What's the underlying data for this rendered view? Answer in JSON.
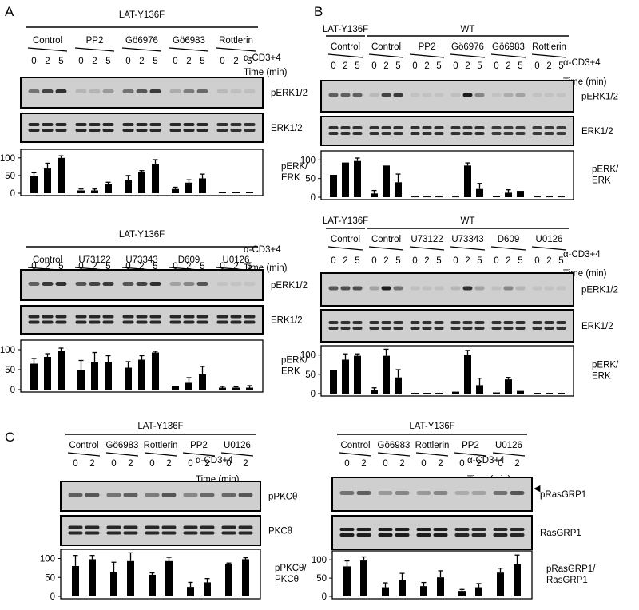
{
  "panel_letters": [
    "A",
    "B",
    "C"
  ],
  "panels": [
    {
      "id": "A_top",
      "group_labels": [
        {
          "text": "LAT-Y136F"
        }
      ],
      "treatments": [
        "Control",
        "PP2",
        "Gö6976",
        "Gö6983",
        "Rottlerin"
      ],
      "timepoints": [
        "0",
        "2",
        "5"
      ],
      "stim_label": "α-CD3+4",
      "time_label": "Time (min)",
      "blot_labels": [
        "pERK1/2",
        "ERK1/2"
      ],
      "band_intensity": {
        "phospho": [
          0.45,
          0.7,
          0.8,
          0.1,
          0.1,
          0.25,
          0.45,
          0.6,
          0.75,
          0.15,
          0.4,
          0.5,
          0.08,
          0.05,
          0.05
        ],
        "total": [
          0.85,
          0.85,
          0.85,
          0.85,
          0.85,
          0.85,
          0.85,
          0.85,
          0.85,
          0.85,
          0.85,
          0.85,
          0.8,
          0.8,
          0.8
        ]
      },
      "chart_ylabel": "pERK/ ERK",
      "chart_data": {
        "type": "bar",
        "ylim": [
          0,
          120
        ],
        "yticks": [
          "0",
          "50",
          "100"
        ],
        "values": [
          48,
          70,
          100,
          8,
          8,
          25,
          38,
          60,
          83,
          12,
          30,
          42,
          3,
          3,
          3
        ],
        "errors": [
          10,
          15,
          6,
          4,
          4,
          6,
          12,
          4,
          12,
          5,
          8,
          12,
          0,
          0,
          0
        ]
      }
    },
    {
      "id": "A_bottom",
      "group_labels": [
        {
          "text": "LAT-Y136F"
        }
      ],
      "treatments": [
        "Control",
        "U73122",
        "U73343",
        "D609",
        "U0126"
      ],
      "timepoints": [
        "0",
        "2",
        "5"
      ],
      "stim_label": "α-CD3+4",
      "time_label": "Time (min)",
      "blot_labels": [
        "pERK1/2",
        "ERK1/2"
      ],
      "band_intensity": {
        "phospho": [
          0.55,
          0.75,
          0.8,
          0.6,
          0.7,
          0.75,
          0.6,
          0.7,
          0.8,
          0.2,
          0.35,
          0.6,
          0.03,
          0.03,
          0.03
        ],
        "total": [
          0.85,
          0.85,
          0.85,
          0.85,
          0.85,
          0.85,
          0.85,
          0.85,
          0.85,
          0.85,
          0.85,
          0.85,
          0.85,
          0.85,
          0.85
        ]
      },
      "chart_ylabel": "pERK/ ERK",
      "chart_data": {
        "type": "bar",
        "ylim": [
          0,
          120
        ],
        "yticks": [
          "0",
          "50",
          "100"
        ],
        "values": [
          65,
          82,
          98,
          48,
          68,
          70,
          55,
          75,
          93,
          10,
          17,
          38,
          5,
          5,
          5
        ],
        "errors": [
          13,
          8,
          6,
          25,
          25,
          15,
          15,
          10,
          3,
          0,
          13,
          20,
          3,
          2,
          5
        ]
      }
    },
    {
      "id": "B_top",
      "group_labels": [
        {
          "text": "LAT-Y136F"
        },
        {
          "text": "WT"
        }
      ],
      "treatments": [
        "Control",
        "Control",
        "PP2",
        "Gö6976",
        "Gö6983",
        "Rottlerin"
      ],
      "timepoints": [
        "0",
        "2",
        "5"
      ],
      "stim_label": "α-CD3+4",
      "time_label": "Time (min)",
      "blot_labels": [
        "pERK1/2",
        "ERK1/2"
      ],
      "band_intensity": {
        "phospho": [
          0.55,
          0.55,
          0.55,
          0.08,
          0.7,
          0.75,
          0.03,
          0.03,
          0.03,
          0.05,
          0.9,
          0.35,
          0.03,
          0.15,
          0.2,
          0.03,
          0.03,
          0.03
        ],
        "total": [
          0.8,
          0.8,
          0.8,
          0.8,
          0.8,
          0.8,
          0.8,
          0.8,
          0.8,
          0.8,
          0.8,
          0.8,
          0.75,
          0.75,
          0.75,
          0.75,
          0.75,
          0.75
        ]
      },
      "chart_ylabel": "pERK/ ERK",
      "chart_data": {
        "type": "bar",
        "ylim": [
          0,
          120
        ],
        "yticks": [
          "0",
          "50",
          "100"
        ],
        "values": [
          60,
          93,
          97,
          10,
          85,
          40,
          2,
          2,
          2,
          2,
          85,
          22,
          3,
          12,
          17,
          2,
          2,
          2
        ],
        "errors": [
          0,
          0,
          8,
          8,
          0,
          22,
          0,
          0,
          0,
          0,
          7,
          15,
          0,
          8,
          0,
          0,
          0,
          0
        ]
      }
    },
    {
      "id": "B_bottom",
      "group_labels": [
        {
          "text": "LAT-Y136F"
        },
        {
          "text": "WT"
        }
      ],
      "treatments": [
        "Control",
        "Control",
        "U73122",
        "U73343",
        "D609",
        "U0126"
      ],
      "timepoints": [
        "0",
        "2",
        "5"
      ],
      "stim_label": "α-CD3+4",
      "time_label": "Time (min)",
      "blot_labels": [
        "pERK1/2",
        "ERK1/2"
      ],
      "band_intensity": {
        "phospho": [
          0.6,
          0.65,
          0.65,
          0.2,
          0.9,
          0.45,
          0.05,
          0.05,
          0.05,
          0.1,
          0.8,
          0.2,
          0.05,
          0.35,
          0.1,
          0.03,
          0.03,
          0.03
        ],
        "total": [
          0.8,
          0.8,
          0.8,
          0.8,
          0.8,
          0.8,
          0.8,
          0.8,
          0.8,
          0.8,
          0.8,
          0.8,
          0.8,
          0.8,
          0.8,
          0.8,
          0.8,
          0.8
        ]
      },
      "chart_ylabel": "pERK/ ERK",
      "chart_data": {
        "type": "bar",
        "ylim": [
          0,
          120
        ],
        "yticks": [
          "0",
          "50",
          "100"
        ],
        "values": [
          60,
          88,
          98,
          10,
          98,
          42,
          2,
          2,
          2,
          5,
          100,
          22,
          3,
          37,
          7,
          2,
          2,
          2
        ],
        "errors": [
          0,
          15,
          5,
          5,
          17,
          20,
          0,
          0,
          0,
          0,
          12,
          18,
          0,
          5,
          0,
          0,
          0,
          0
        ]
      }
    },
    {
      "id": "C_left",
      "group_labels": [
        {
          "text": "LAT-Y136F"
        }
      ],
      "treatments": [
        "Control",
        "Gö6983",
        "Rottlerin",
        "PP2",
        "U0126"
      ],
      "timepoints": [
        "0",
        "2"
      ],
      "stim_label": "α-CD3+4",
      "time_label": "Time (min)",
      "blot_labels": [
        "pPKCθ",
        "PKCθ"
      ],
      "band_intensity": {
        "phospho": [
          0.55,
          0.6,
          0.45,
          0.55,
          0.4,
          0.6,
          0.35,
          0.5,
          0.5,
          0.6
        ],
        "total": [
          0.85,
          0.85,
          0.85,
          0.85,
          0.85,
          0.85,
          0.85,
          0.85,
          0.85,
          0.85
        ]
      },
      "chart_ylabel": "pPKCθ/ PKCθ",
      "chart_data": {
        "type": "bar",
        "ylim": [
          0,
          120
        ],
        "yticks": [
          "0",
          "50",
          "100"
        ],
        "values": [
          80,
          98,
          65,
          93,
          57,
          93,
          25,
          37,
          85,
          98
        ],
        "errors": [
          28,
          10,
          25,
          22,
          5,
          10,
          12,
          10,
          3,
          4
        ]
      }
    },
    {
      "id": "C_right",
      "group_labels": [
        {
          "text": "LAT-Y136F"
        }
      ],
      "treatments": [
        "Control",
        "Gö6983",
        "Rottlerin",
        "PP2",
        "U0126"
      ],
      "timepoints": [
        "0",
        "2"
      ],
      "stim_label": "α-CD3+4",
      "time_label": "Time (min)",
      "blot_labels": [
        "pRasGRP1",
        "RasGRP1"
      ],
      "arrow_glyph": "◀",
      "band_intensity": {
        "phospho": [
          0.45,
          0.55,
          0.25,
          0.35,
          0.25,
          0.35,
          0.15,
          0.2,
          0.45,
          0.6
        ],
        "total": [
          0.9,
          0.9,
          0.9,
          0.9,
          0.9,
          0.9,
          0.85,
          0.85,
          0.85,
          0.85
        ]
      },
      "chart_ylabel": "pRasGRP1/ RasGRP1",
      "chart_data": {
        "type": "bar",
        "ylim": [
          0,
          120
        ],
        "yticks": [
          "0",
          "50",
          "100"
        ],
        "values": [
          82,
          98,
          25,
          45,
          28,
          52,
          15,
          25,
          65,
          88
        ],
        "errors": [
          15,
          10,
          12,
          18,
          10,
          18,
          4,
          10,
          12,
          25
        ]
      }
    }
  ]
}
